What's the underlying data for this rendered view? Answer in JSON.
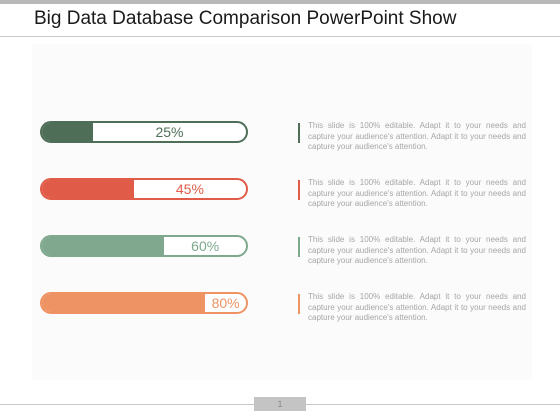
{
  "slide": {
    "title": "Big Data Database Comparison PowerPoint Show",
    "page_number": "1"
  },
  "items": [
    {
      "percent": 25,
      "label": "25%",
      "color": "#4e6e58",
      "text": "This slide is 100% editable. Adapt it to your needs and capture your audience's attention. Adapt it to your needs and capture your audience's attention."
    },
    {
      "percent": 45,
      "label": "45%",
      "color": "#e05c48",
      "text": "This slide is 100% editable. Adapt it to your needs and capture your audience's attention. Adapt it to your needs and capture your audience's attention."
    },
    {
      "percent": 60,
      "label": "60%",
      "color": "#7fa88e",
      "text": "This slide is 100% editable. Adapt it to your needs and capture your audience's attention. Adapt it to your needs and capture your audience's attention."
    },
    {
      "percent": 80,
      "label": "80%",
      "color": "#ee9364",
      "text": "This slide is 100% editable. Adapt it to your needs and capture your audience's attention. Adapt it to your needs and capture your audience's attention."
    }
  ]
}
